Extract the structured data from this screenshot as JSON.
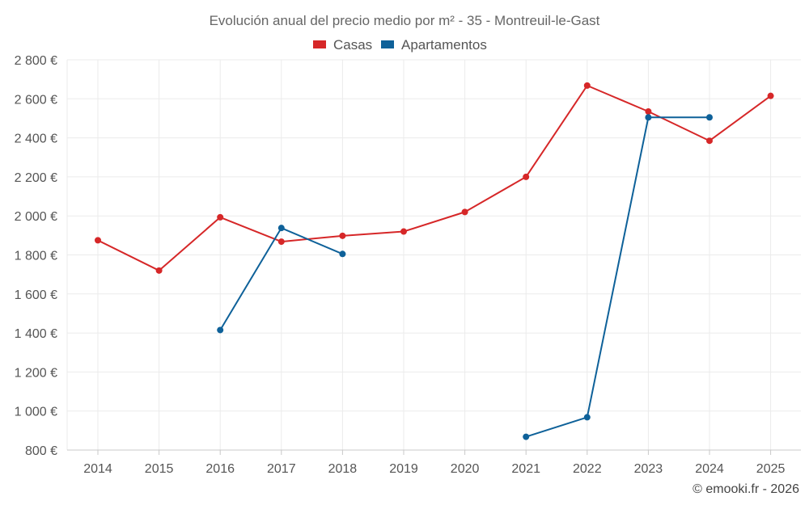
{
  "chart_data": {
    "type": "line",
    "title": "Evolución anual del precio medio por m² - 35 - Montreuil-le-Gast",
    "categories": [
      "2014",
      "2015",
      "2016",
      "2017",
      "2018",
      "2019",
      "2020",
      "2021",
      "2022",
      "2023",
      "2024",
      "2025"
    ],
    "series": [
      {
        "name": "Casas",
        "color": "#d62728",
        "values": [
          1875,
          1720,
          1993,
          1868,
          1898,
          1920,
          2020,
          2200,
          2668,
          2535,
          2385,
          2615
        ]
      },
      {
        "name": "Apartamentos",
        "color": "#0e6199",
        "values": [
          null,
          null,
          1415,
          1938,
          1805,
          null,
          null,
          868,
          968,
          2505,
          2505,
          null
        ]
      }
    ],
    "ylim": [
      800,
      2800
    ],
    "yticks": [
      800,
      1000,
      1200,
      1400,
      1600,
      1800,
      2000,
      2200,
      2400,
      2600,
      2800
    ],
    "ytick_labels": [
      "800 €",
      "1 000 €",
      "1 200 €",
      "1 400 €",
      "1 600 €",
      "1 800 €",
      "2 000 €",
      "2 200 €",
      "2 400 €",
      "2 600 €",
      "2 800 €"
    ],
    "xlabel": "",
    "ylabel": "",
    "grid": true,
    "legend_position": "top-center"
  },
  "credit": "© emooki.fr - 2026"
}
